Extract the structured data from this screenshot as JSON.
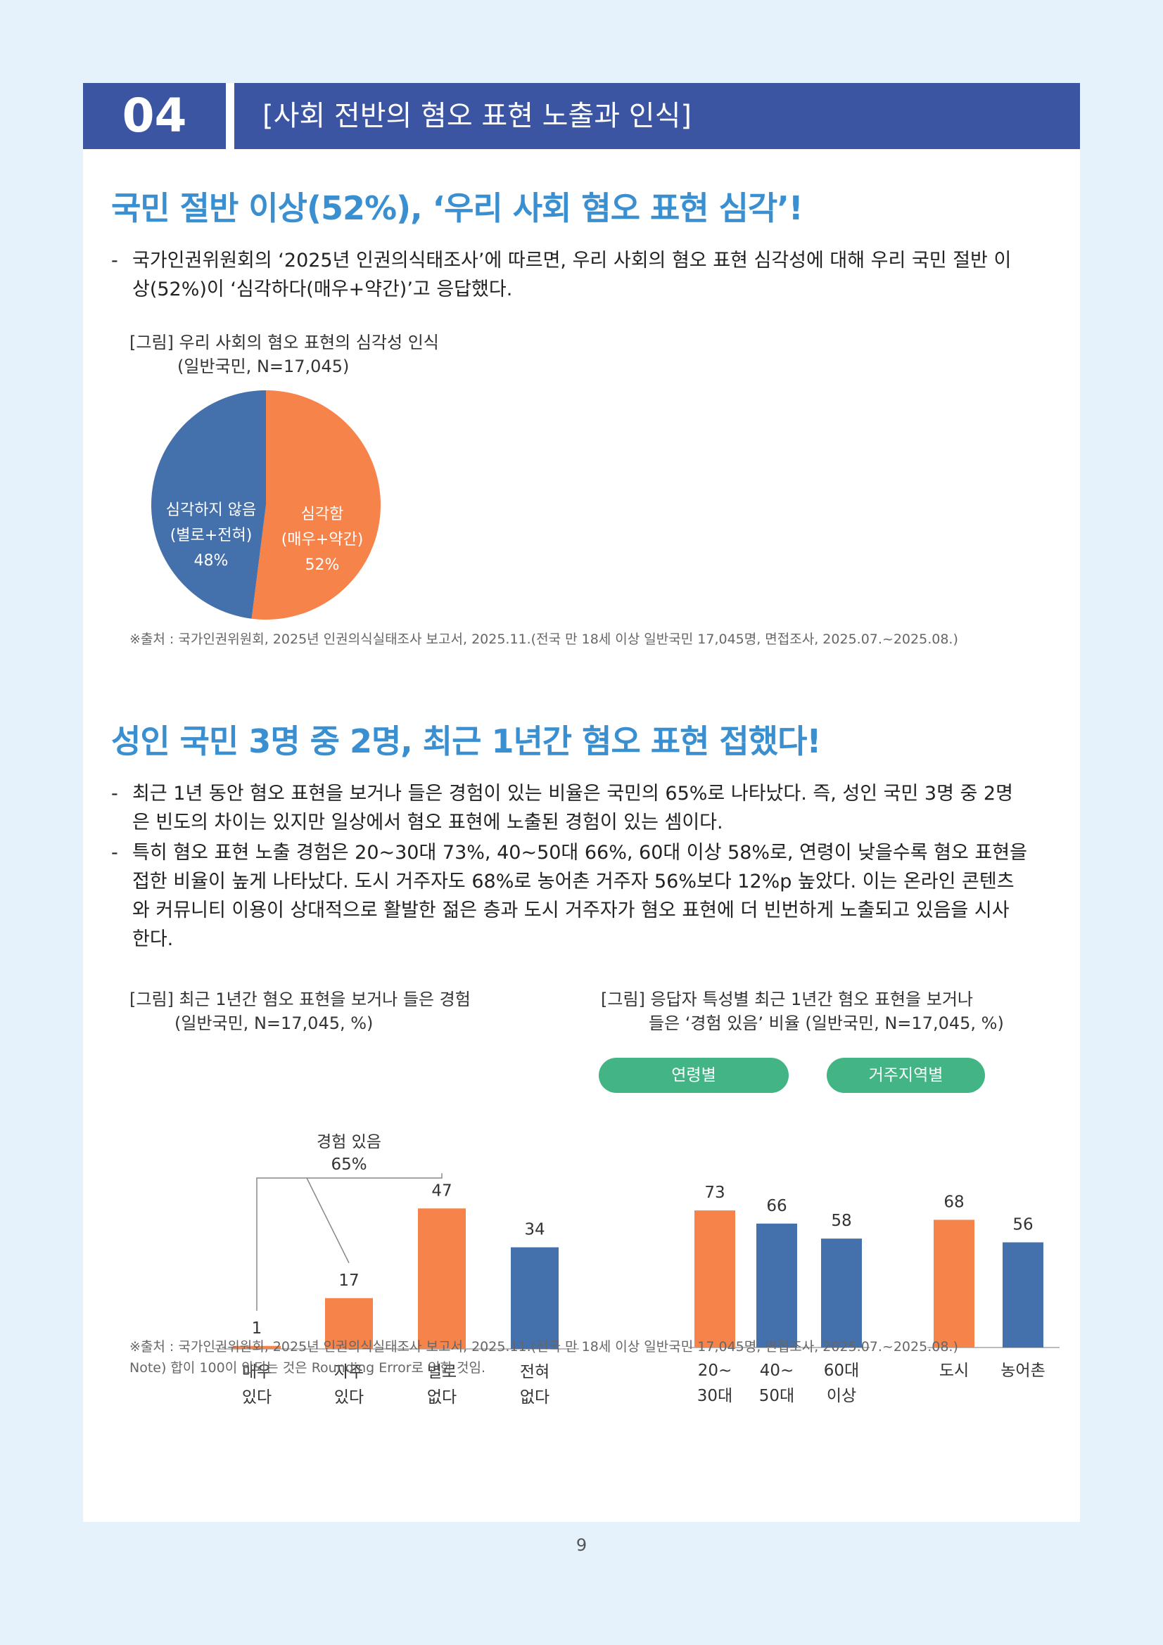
{
  "header": {
    "number": "04",
    "title": "[사회 전반의 혐오 표현 노출과 인식]"
  },
  "section1": {
    "title": "국민 절반 이상(52%), ‘우리 사회 혐오 표현 심각’!",
    "bullets": [
      {
        "dash": "-",
        "lines": [
          "국가인권위원회의 ‘2025년 인권의식태조사’에 따르면, 우리 사회의 혐오 표현 심각성에 대해 우리 국민 절반 이",
          "상(52%)이 ‘심각하다(매우+약간)’고 응답했다."
        ]
      }
    ],
    "figure": {
      "caption_line1": "[그림] 우리 사회의 혐오 표현의 심각성 인식",
      "caption_line2": "(일반국민, N=17,045)",
      "chart_data": {
        "type": "pie",
        "slices": [
          {
            "label_lines": [
              "심각함",
              "(매우+약간)",
              "52%"
            ],
            "value": 52,
            "color": "#f5834a"
          },
          {
            "label_lines": [
              "심각하지 않음",
              "(별로+전혀)",
              "48%"
            ],
            "value": 48,
            "color": "#4470ab"
          }
        ]
      },
      "source": "※출처 : 국가인권위원회, 2025년 인권의식실태조사 보고서, 2025.11.(전국 만 18세 이상 일반국민 17,045명, 면접조사, 2025.07.~2025.08.)"
    }
  },
  "section2": {
    "title": "성인 국민 3명 중 2명, 최근 1년간 혐오 표현 접했다!",
    "bullets": [
      {
        "dash": "-",
        "lines": [
          "최근 1년 동안 혐오 표현을 보거나 들은 경험이 있는 비율은 국민의 65%로 나타났다. 즉, 성인 국민 3명 중 2명",
          "은 빈도의 차이는 있지만 일상에서 혐오 표현에 노출된 경험이 있는 셈이다."
        ]
      },
      {
        "dash": "-",
        "lines": [
          "특히 혐오 표현 노출 경험은 20~30대 73%, 40~50대 66%, 60대 이상 58%로, 연령이 낮을수록 혐오 표현을",
          "접한 비율이 높게 나타났다. 도시 거주자도 68%로 농어촌 거주자 56%보다 12%p 높았다. 이는 온라인 콘텐츠",
          "와 커뮤니티 이용이 상대적으로 활발한 젊은 층과 도시 거주자가 혐오 표현에 더 빈번하게 노출되고 있음을 시사",
          "한다."
        ]
      }
    ],
    "figure_left": {
      "caption_line1": "[그림] 최근 1년간 혐오 표현을 보거나 들은 경험",
      "caption_line2": "(일반국민, N=17,045, %)",
      "bracket_label": [
        "경험 있음",
        "65%"
      ],
      "chart_data": {
        "type": "bar",
        "categories": [
          [
            "매우",
            "있다"
          ],
          [
            "자주",
            "있다"
          ],
          [
            "별로",
            "없다"
          ],
          [
            "전혀",
            "없다"
          ]
        ],
        "values": [
          1,
          17,
          47,
          34
        ],
        "colors": [
          "#f5834a",
          "#f5834a",
          "#f5834a",
          "#4470ab"
        ],
        "ylim": [
          0,
          80
        ]
      }
    },
    "figure_right": {
      "caption_line1": "[그림] 응답자 특성별 최근 1년간 혐오 표현을 보거나",
      "caption_line2": "들은 ‘경험 있음’ 비율 (일반국민, N=17,045, %)",
      "groups": [
        {
          "label": "연령별",
          "chart_data": {
            "type": "bar",
            "categories": [
              [
                "20~",
                "30대"
              ],
              [
                "40~",
                "50대"
              ],
              [
                "60대",
                "이상"
              ]
            ],
            "values": [
              73,
              66,
              58
            ],
            "colors": [
              "#f5834a",
              "#4470ab",
              "#4470ab"
            ],
            "ylim": [
              0,
              80
            ]
          }
        },
        {
          "label": "거주지역별",
          "chart_data": {
            "type": "bar",
            "categories": [
              [
                "도시"
              ],
              [
                "농어촌"
              ]
            ],
            "values": [
              68,
              56
            ],
            "colors": [
              "#f5834a",
              "#4470ab"
            ],
            "ylim": [
              0,
              80
            ]
          }
        }
      ]
    },
    "source": "※출처 : 국가인권위원회, 2025년 인권의식실태조사 보고서, 2025.11.(전국 만 18세 이상 일반국민 17,045명, 면접조사, 2025.07.~2025.08.)",
    "note": "Note) 합이 100이 안되는 것은 Rounding Error로 인한 것임."
  },
  "page_number": "9"
}
